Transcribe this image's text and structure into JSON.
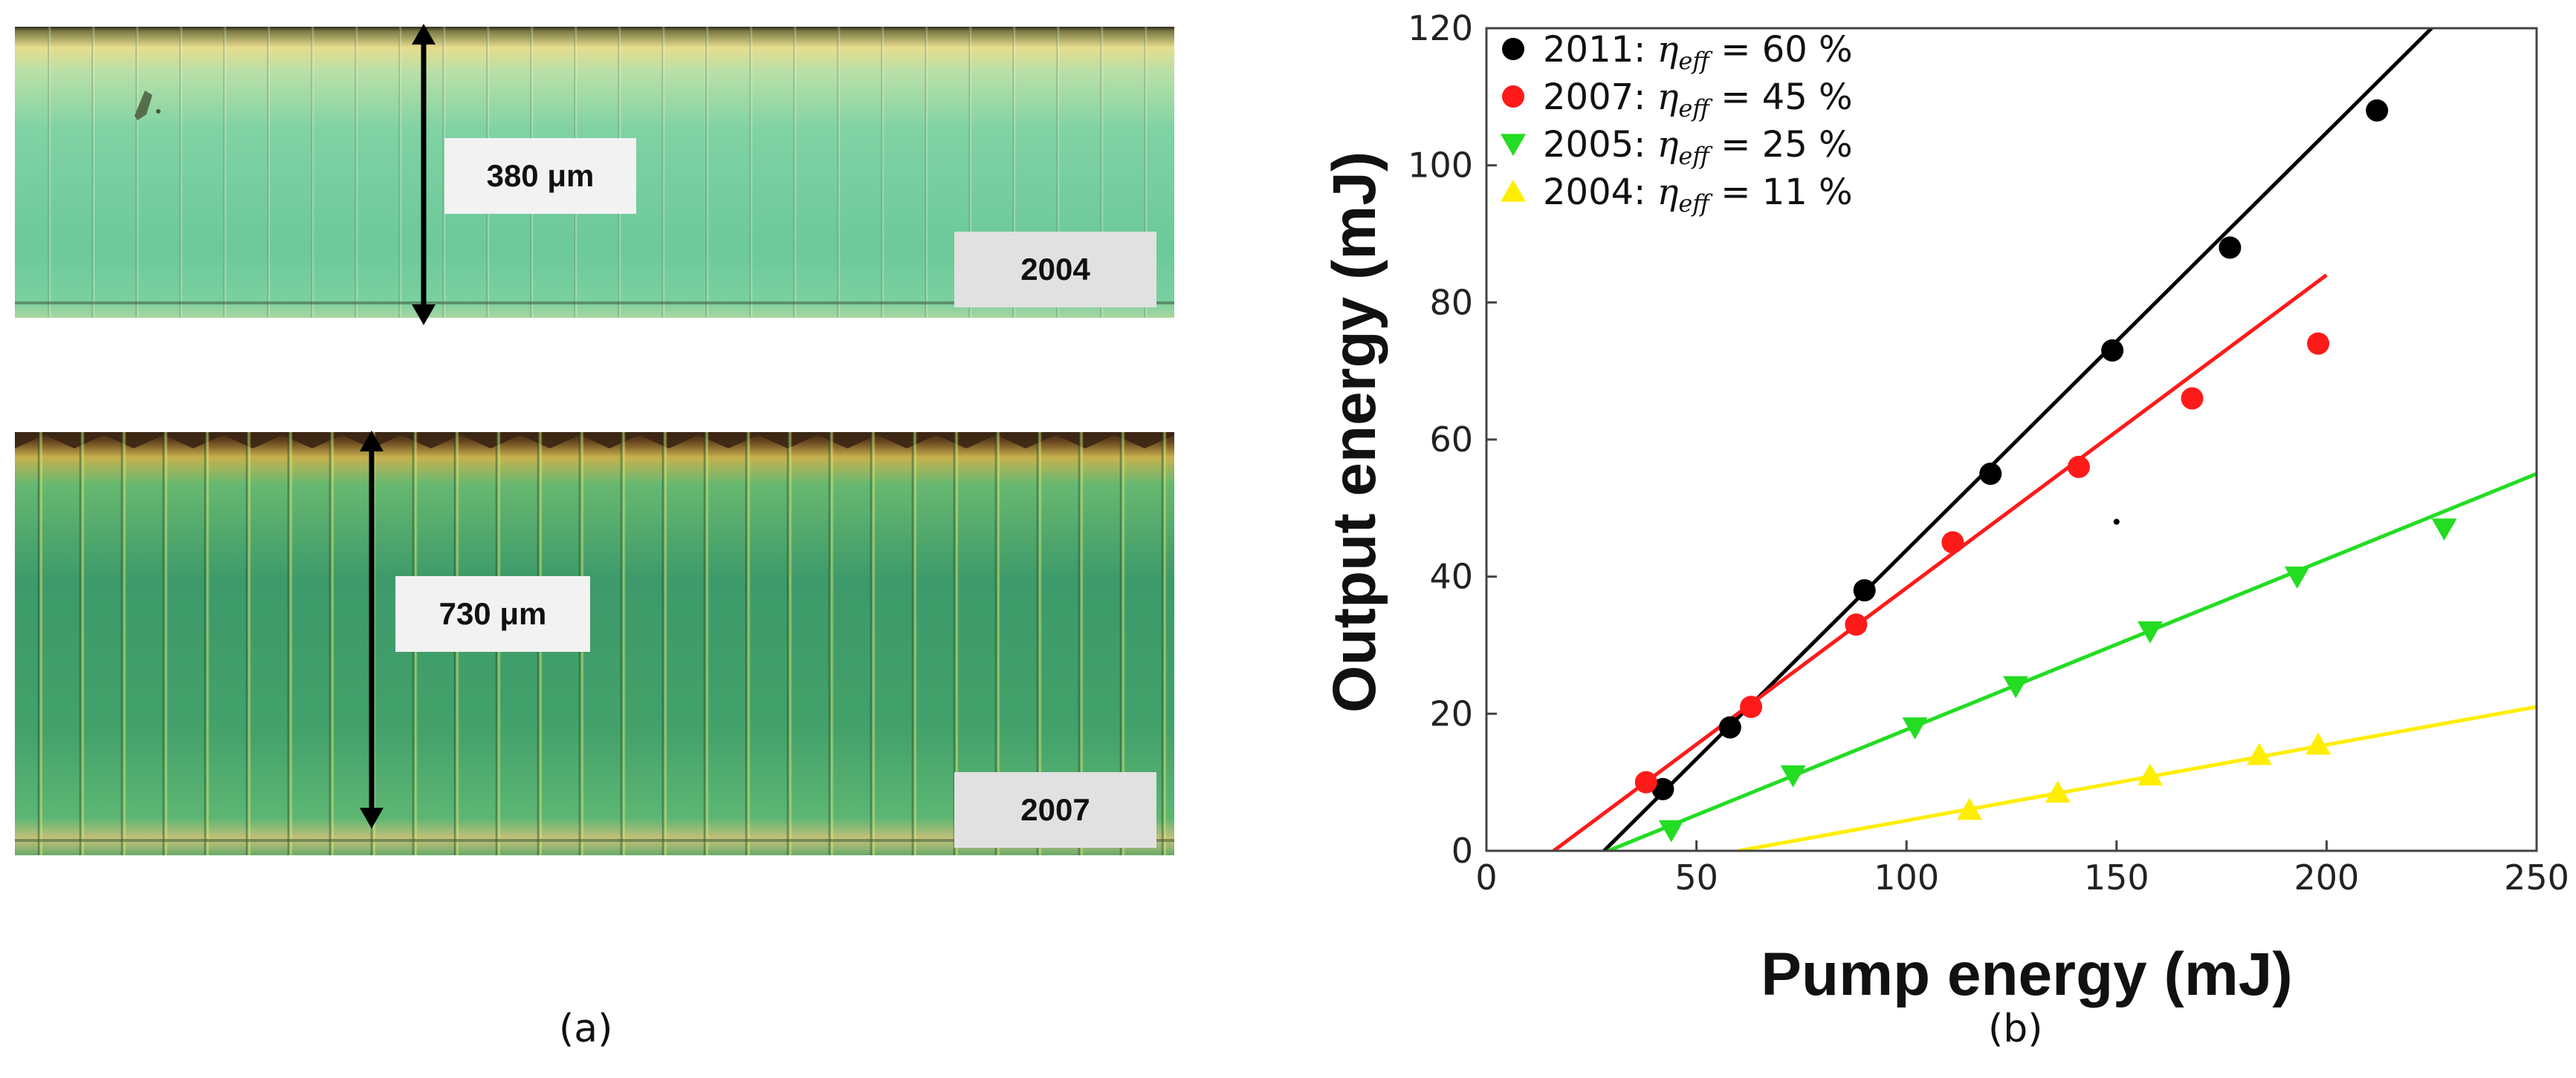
{
  "panel_a": {
    "image_2004": {
      "thickness_label": "380 μm",
      "year_label": "2004"
    },
    "image_2007": {
      "thickness_label": "730 μm",
      "year_label": "2007"
    },
    "caption": "(a)"
  },
  "panel_b": {
    "caption": "(b)"
  },
  "chart_data": {
    "type": "scatter",
    "xlabel": "Pump energy (mJ)",
    "ylabel": "Output energy (mJ)",
    "xlim": [
      0,
      250
    ],
    "ylim": [
      0,
      120
    ],
    "x_ticks": [
      0,
      50,
      100,
      150,
      200,
      250
    ],
    "y_ticks": [
      0,
      20,
      40,
      60,
      80,
      100,
      120
    ],
    "legend_position": "top-left",
    "series": [
      {
        "name": "2011",
        "legend_prefix": "2011:",
        "eta_symbol": "η",
        "eta_subscript": "eff",
        "legend_value": "= 60 %",
        "marker": "circle",
        "color": "#000000",
        "points": [
          [
            42,
            9
          ],
          [
            58,
            18
          ],
          [
            90,
            38
          ],
          [
            120,
            55
          ],
          [
            149,
            73
          ],
          [
            177,
            88
          ],
          [
            212,
            108
          ]
        ],
        "fit": [
          [
            28,
            0
          ],
          [
            225,
            120
          ]
        ]
      },
      {
        "name": "2007",
        "legend_prefix": "2007:",
        "eta_symbol": "η",
        "eta_subscript": "eff",
        "legend_value": "= 45 %",
        "marker": "circle",
        "color": "#ff1a1a",
        "points": [
          [
            38,
            10
          ],
          [
            63,
            21
          ],
          [
            88,
            33
          ],
          [
            111,
            45
          ],
          [
            141,
            56
          ],
          [
            168,
            66
          ],
          [
            198,
            74
          ]
        ],
        "fit": [
          [
            16,
            0
          ],
          [
            200,
            84
          ]
        ]
      },
      {
        "name": "2005",
        "legend_prefix": "2005:",
        "eta_symbol": "η",
        "eta_subscript": "eff",
        "legend_value": "= 25 %",
        "marker": "triangle-down",
        "color": "#22dd22",
        "points": [
          [
            44,
            3
          ],
          [
            73,
            11
          ],
          [
            102,
            18
          ],
          [
            126,
            24
          ],
          [
            158,
            32
          ],
          [
            193,
            40
          ],
          [
            228,
            47
          ]
        ],
        "fit": [
          [
            29,
            0
          ],
          [
            250,
            55
          ]
        ]
      },
      {
        "name": "2004",
        "legend_prefix": "2004:",
        "eta_symbol": "η",
        "eta_subscript": "eff",
        "legend_value": "= 11 %",
        "marker": "triangle-up",
        "color": "#ffee00",
        "points": [
          [
            115,
            6
          ],
          [
            136,
            8.5
          ],
          [
            158,
            11
          ],
          [
            184,
            14
          ],
          [
            198,
            15.5
          ]
        ],
        "fit": [
          [
            60,
            0
          ],
          [
            250,
            21
          ]
        ]
      }
    ],
    "annotations": [
      {
        "kind": "stray-dot",
        "x": 150,
        "y": 48,
        "color": "#000000"
      }
    ]
  }
}
